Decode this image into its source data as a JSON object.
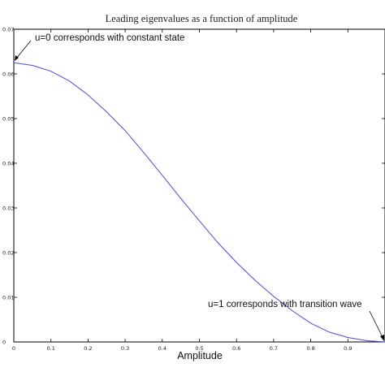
{
  "chart_data": {
    "type": "line",
    "title": "Leading eigenvalues as a function of amplitude",
    "xlabel": "Amplitude",
    "ylabel": "",
    "xlim": [
      0,
      1
    ],
    "ylim": [
      0,
      0.07
    ],
    "xticks": [
      "0",
      "0.1",
      "0.2",
      "0.3",
      "0.4",
      "0.5",
      "0.6",
      "0.7",
      "0.8",
      "0.9"
    ],
    "yticks": [
      "0",
      "0.01",
      "0.02",
      "0.03",
      "0.04",
      "0.05",
      "0.06",
      "0.07"
    ],
    "grid": false,
    "line_color": "#4a4ae0",
    "series": [
      {
        "x": [
          0,
          0.05,
          0.1,
          0.15,
          0.2,
          0.25,
          0.3,
          0.35,
          0.4,
          0.45,
          0.5,
          0.55,
          0.6,
          0.65,
          0.7,
          0.75,
          0.8,
          0.85,
          0.9,
          0.95,
          1.0
        ],
        "y": [
          0.0625,
          0.0619,
          0.0606,
          0.0584,
          0.0553,
          0.0515,
          0.0473,
          0.0424,
          0.0373,
          0.0321,
          0.0271,
          0.0222,
          0.0178,
          0.0138,
          0.0102,
          0.007,
          0.0042,
          0.0022,
          0.001,
          0.0003,
          0.0
        ]
      }
    ],
    "annotations": [
      {
        "text": "u=0 corresponds with constant state",
        "x": 0,
        "y": 0.0625
      },
      {
        "text": "u=1 corresponds with transition wave",
        "x": 1.0,
        "y": 0.0
      }
    ]
  }
}
